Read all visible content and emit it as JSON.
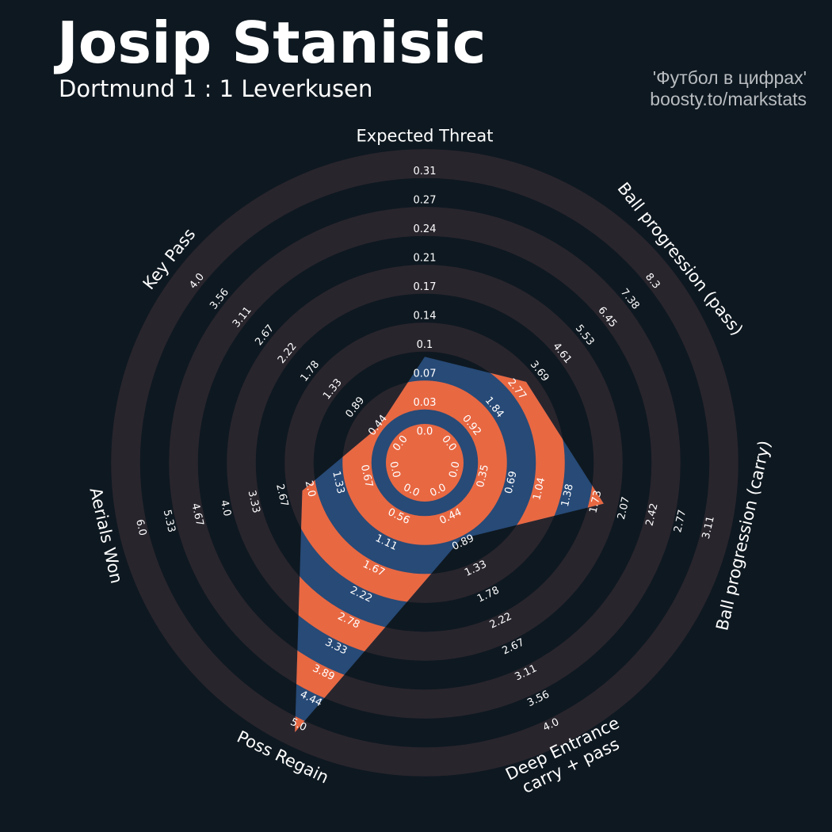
{
  "header": {
    "title": "Josip Stanisic",
    "subtitle": "Dortmund 1 : 1 Leverkusen",
    "credit_line1": "'Футбол в цифрах'",
    "credit_line2": "boosty.to/markstats"
  },
  "colors": {
    "background": "#0e1820",
    "ring_band": "#29252d",
    "player_fill": "#274a77",
    "player_stripe": "#e86842",
    "text": "#ffffff"
  },
  "chart_data": {
    "type": "radar",
    "series": [
      {
        "values": [
          0.08,
          2.9,
          1.73,
          0.7,
          5.0,
          2.0,
          0.3
        ]
      }
    ],
    "axes": [
      {
        "label": "Expected Threat",
        "min": 0.0,
        "max": 0.31,
        "ticks": [
          "0.0",
          "0.03",
          "0.07",
          "0.1",
          "0.14",
          "0.17",
          "0.21",
          "0.24",
          "0.27",
          "0.31"
        ]
      },
      {
        "label": "Ball progression (pass)",
        "min": 0.0,
        "max": 8.3,
        "ticks": [
          "0.0",
          "0.92",
          "1.84",
          "2.77",
          "3.69",
          "4.61",
          "5.53",
          "6.45",
          "7.38",
          "8.3"
        ]
      },
      {
        "label": "Ball progression (carry)",
        "min": 0.0,
        "max": 3.11,
        "ticks": [
          "0.0",
          "0.35",
          "0.69",
          "1.04",
          "1.38",
          "1.73",
          "2.07",
          "2.42",
          "2.77",
          "3.11"
        ]
      },
      {
        "label": "Deep Entrance\ncarry + pass",
        "min": 0.0,
        "max": 4.0,
        "ticks": [
          "0.0",
          "0.44",
          "0.89",
          "1.33",
          "1.78",
          "2.22",
          "2.67",
          "3.11",
          "3.56",
          "4.0"
        ]
      },
      {
        "label": "Poss Regain",
        "min": 0.0,
        "max": 5.0,
        "ticks": [
          "0.0",
          "0.56",
          "1.11",
          "1.67",
          "2.22",
          "2.78",
          "3.33",
          "3.89",
          "4.44",
          "5.0"
        ]
      },
      {
        "label": "Aerials Won",
        "min": 0.0,
        "max": 6.0,
        "ticks": [
          "0.0",
          "0.67",
          "1.33",
          "2.0",
          "2.67",
          "3.33",
          "4.0",
          "4.67",
          "5.33",
          "6.0"
        ]
      },
      {
        "label": "Key Pass",
        "min": 0.0,
        "max": 4.0,
        "ticks": [
          "0.0",
          "0.44",
          "0.89",
          "1.33",
          "1.78",
          "2.22",
          "2.67",
          "3.11",
          "3.56",
          "4.0"
        ]
      }
    ]
  }
}
